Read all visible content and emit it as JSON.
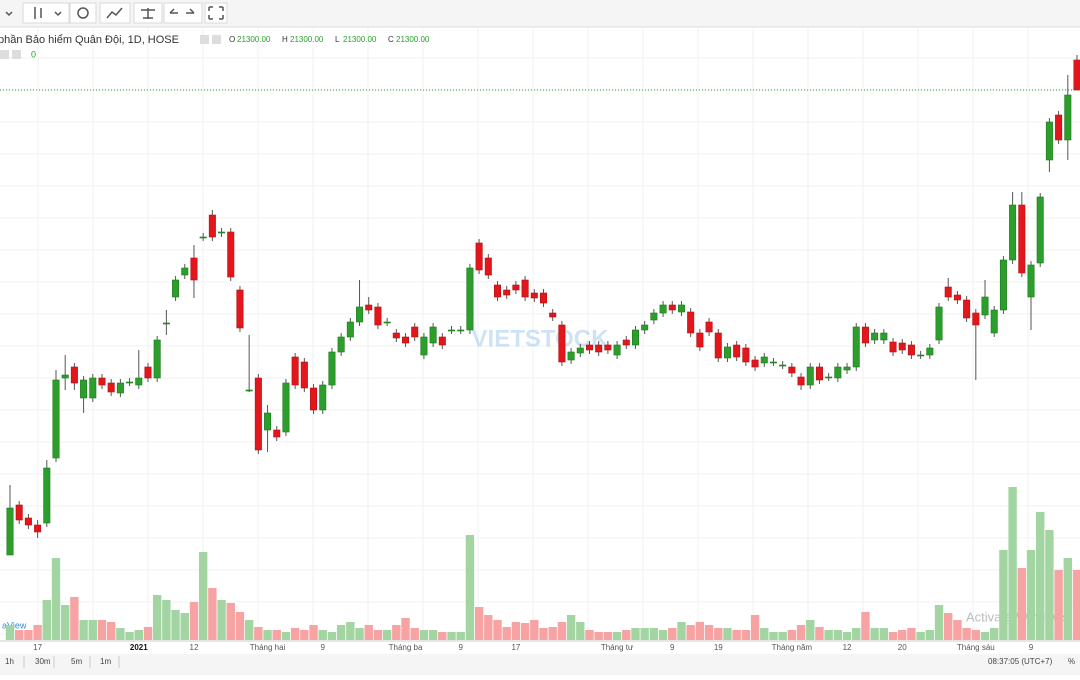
{
  "chart_data": {
    "type": "candlestick",
    "title": "phần Bảo hiểm Quân Đội, 1D, HOSE",
    "ohlc_legend": [
      {
        "key": "O",
        "value": 21300,
        "label": "21300.00"
      },
      {
        "key": "H",
        "value": 21300,
        "label": "21300.00"
      },
      {
        "key": "L",
        "value": 21300,
        "label": "21300.00"
      },
      {
        "key": "C",
        "value": 21300,
        "label": "21300.00"
      }
    ],
    "volume_legend": 0,
    "last_price_line": 21300,
    "up_color": "#2b9e2b",
    "down_color": "#e3171b",
    "volume_up_color": "#a3d5a3",
    "volume_down_color": "#f7a3a3",
    "ylim": [
      11500,
      22540
    ],
    "vlim": [
      0,
      3060000
    ],
    "categories": [
      null,
      null,
      null,
      "17",
      null,
      null,
      null,
      null,
      null,
      null,
      null,
      null,
      null,
      null,
      "2021",
      null,
      null,
      null,
      null,
      null,
      "12",
      null,
      null,
      null,
      null,
      null,
      null,
      null,
      "Tháng hai",
      null,
      null,
      null,
      null,
      null,
      "9",
      null,
      null,
      null,
      null,
      null,
      null,
      null,
      null,
      "Tháng ba",
      null,
      null,
      null,
      null,
      null,
      "9",
      null,
      null,
      null,
      null,
      null,
      "17",
      null,
      null,
      null,
      null,
      null,
      null,
      null,
      null,
      null,
      null,
      "Tháng tư",
      null,
      null,
      null,
      null,
      null,
      "9",
      null,
      null,
      null,
      null,
      "19",
      null,
      null,
      null,
      null,
      null,
      null,
      null,
      "Tháng năm",
      null,
      null,
      null,
      null,
      null,
      "12",
      null,
      null,
      null,
      null,
      null,
      "20",
      null,
      null,
      null,
      null,
      null,
      null,
      null,
      "Tháng sáu",
      null,
      null,
      null,
      null,
      null,
      "9",
      null,
      null,
      null,
      null,
      null
    ],
    "candles": [
      [
        12000,
        13400,
        12000,
        12940
      ],
      [
        13000,
        13080,
        12620,
        12700
      ],
      [
        12740,
        12820,
        12520,
        12600
      ],
      [
        12600,
        12700,
        12340,
        12460
      ],
      [
        12640,
        13900,
        12560,
        13740
      ],
      [
        13940,
        15700,
        13860,
        15500
      ],
      [
        15540,
        16000,
        15300,
        15600
      ],
      [
        15760,
        15840,
        15300,
        15440
      ],
      [
        15140,
        15580,
        14840,
        15500
      ],
      [
        15140,
        15620,
        15060,
        15540
      ],
      [
        15540,
        15620,
        15320,
        15400
      ],
      [
        15440,
        15520,
        15180,
        15260
      ],
      [
        15240,
        15520,
        15160,
        15440
      ],
      [
        15460,
        15540,
        15380,
        15460
      ],
      [
        15400,
        16100,
        15320,
        15540
      ],
      [
        15760,
        15840,
        15460,
        15540
      ],
      [
        15540,
        16380,
        15460,
        16300
      ],
      [
        16640,
        16900,
        16400,
        16640
      ],
      [
        17160,
        17580,
        17080,
        17500
      ],
      [
        17600,
        17820,
        17520,
        17740
      ],
      [
        17940,
        18200,
        17140,
        17500
      ],
      [
        18360,
        18440,
        18280,
        18360
      ],
      [
        18800,
        18900,
        18280,
        18360
      ],
      [
        18460,
        18540,
        18360,
        18460
      ],
      [
        18460,
        18540,
        17480,
        17560
      ],
      [
        17300,
        17380,
        16460,
        16540
      ],
      [
        15300,
        16400,
        15260,
        15300
      ],
      [
        15540,
        15620,
        14020,
        14100
      ],
      [
        14500,
        15000,
        14060,
        14840
      ],
      [
        14500,
        14580,
        14280,
        14360
      ],
      [
        14460,
        15520,
        14380,
        15440
      ],
      [
        15960,
        16040,
        15320,
        15400
      ],
      [
        15860,
        15940,
        15260,
        15340
      ],
      [
        15340,
        15420,
        14820,
        14900
      ],
      [
        14900,
        15480,
        14820,
        15400
      ],
      [
        15400,
        16140,
        15320,
        16060
      ],
      [
        16060,
        16440,
        15980,
        16360
      ],
      [
        16360,
        16740,
        16280,
        16660
      ],
      [
        16660,
        17500,
        16580,
        16960
      ],
      [
        17000,
        17160,
        16820,
        16900
      ],
      [
        16960,
        17040,
        16520,
        16600
      ],
      [
        16660,
        16740,
        16580,
        16660
      ],
      [
        16440,
        16520,
        16260,
        16340
      ],
      [
        16360,
        16440,
        16160,
        16240
      ],
      [
        16560,
        16640,
        16280,
        16360
      ],
      [
        16000,
        16440,
        15920,
        16360
      ],
      [
        16240,
        16640,
        16160,
        16560
      ],
      [
        16360,
        16440,
        16120,
        16200
      ],
      [
        16500,
        16580,
        16420,
        16500
      ],
      [
        16500,
        16580,
        16420,
        16500
      ],
      [
        16500,
        17820,
        16420,
        17740
      ],
      [
        18240,
        18320,
        17620,
        17700
      ],
      [
        17940,
        18020,
        17520,
        17600
      ],
      [
        17400,
        17480,
        17080,
        17160
      ],
      [
        17300,
        17380,
        17120,
        17200
      ],
      [
        17400,
        17480,
        17220,
        17300
      ],
      [
        17500,
        17580,
        17080,
        17160
      ],
      [
        17240,
        17320,
        17060,
        17140
      ],
      [
        17240,
        17320,
        16960,
        17040
      ],
      [
        16840,
        16920,
        16680,
        16760
      ],
      [
        16600,
        16680,
        15780,
        15860
      ],
      [
        15900,
        16140,
        15820,
        16060
      ],
      [
        16040,
        16220,
        15960,
        16140
      ],
      [
        16200,
        16280,
        16020,
        16100
      ],
      [
        16200,
        16280,
        15980,
        16060
      ],
      [
        16200,
        16280,
        16020,
        16100
      ],
      [
        16000,
        16280,
        15920,
        16200
      ],
      [
        16300,
        16380,
        16120,
        16200
      ],
      [
        16200,
        16580,
        16120,
        16500
      ],
      [
        16500,
        16680,
        16420,
        16600
      ],
      [
        16700,
        16920,
        16620,
        16840
      ],
      [
        16840,
        17080,
        16760,
        17000
      ],
      [
        17000,
        17080,
        16820,
        16900
      ],
      [
        16860,
        17080,
        16780,
        17000
      ],
      [
        16860,
        16940,
        16360,
        16440
      ],
      [
        16440,
        16520,
        16080,
        16160
      ],
      [
        16660,
        16740,
        16380,
        16460
      ],
      [
        16440,
        16520,
        15860,
        15940
      ],
      [
        15940,
        16240,
        15860,
        16160
      ],
      [
        16200,
        16280,
        15880,
        15960
      ],
      [
        16140,
        16220,
        15780,
        15860
      ],
      [
        15900,
        15980,
        15680,
        15760
      ],
      [
        15840,
        16040,
        15760,
        15960
      ],
      [
        15860,
        15940,
        15780,
        15860
      ],
      [
        15800,
        15880,
        15720,
        15800
      ],
      [
        15760,
        15840,
        15560,
        15640
      ],
      [
        15560,
        15640,
        15300,
        15400
      ],
      [
        15400,
        15840,
        15320,
        15760
      ],
      [
        15760,
        15840,
        15420,
        15500
      ],
      [
        15560,
        15640,
        15480,
        15560
      ],
      [
        15540,
        15840,
        15460,
        15760
      ],
      [
        15700,
        15840,
        15620,
        15760
      ],
      [
        15760,
        16640,
        15680,
        16560
      ],
      [
        16560,
        16640,
        16160,
        16240
      ],
      [
        16300,
        16520,
        16220,
        16440
      ],
      [
        16300,
        16520,
        16220,
        16440
      ],
      [
        16260,
        16340,
        15980,
        16060
      ],
      [
        16240,
        16320,
        16020,
        16100
      ],
      [
        16200,
        16280,
        15920,
        16000
      ],
      [
        16000,
        16080,
        15920,
        16000
      ],
      [
        16000,
        16220,
        15920,
        16140
      ],
      [
        16300,
        17040,
        16220,
        16960
      ],
      [
        17360,
        17540,
        17080,
        17160
      ],
      [
        17200,
        17280,
        17020,
        17100
      ],
      [
        17100,
        17180,
        16660,
        16740
      ],
      [
        16840,
        16920,
        15500,
        16600
      ],
      [
        16800,
        17500,
        16720,
        17160
      ],
      [
        16440,
        16980,
        16360,
        16900
      ],
      [
        16900,
        17980,
        16820,
        17900
      ],
      [
        17900,
        19260,
        17820,
        19000
      ],
      [
        19000,
        19260,
        17560,
        17640
      ],
      [
        17160,
        17880,
        16500,
        17800
      ],
      [
        17840,
        19240,
        17760,
        19160
      ],
      [
        19900,
        20740,
        19660,
        20660
      ],
      [
        20800,
        20880,
        20220,
        20300
      ],
      [
        20300,
        21600,
        19900,
        21200
      ],
      [
        21900,
        22000,
        21300,
        21300
      ]
    ],
    "volume": [
      75000,
      50000,
      50000,
      75000,
      200000,
      410000,
      175000,
      215000,
      100000,
      100000,
      100000,
      90000,
      60000,
      40000,
      50000,
      65000,
      225000,
      200000,
      150000,
      135000,
      190000,
      440000,
      260000,
      200000,
      185000,
      140000,
      100000,
      65000,
      50000,
      50000,
      40000,
      60000,
      50000,
      75000,
      50000,
      40000,
      75000,
      90000,
      60000,
      75000,
      50000,
      50000,
      75000,
      110000,
      60000,
      50000,
      50000,
      40000,
      40000,
      40000,
      525000,
      165000,
      125000,
      100000,
      65000,
      90000,
      85000,
      100000,
      60000,
      65000,
      90000,
      125000,
      90000,
      50000,
      40000,
      40000,
      40000,
      50000,
      60000,
      60000,
      60000,
      50000,
      60000,
      90000,
      75000,
      90000,
      75000,
      60000,
      60000,
      50000,
      50000,
      125000,
      60000,
      40000,
      40000,
      50000,
      75000,
      100000,
      65000,
      50000,
      50000,
      40000,
      60000,
      140000,
      60000,
      60000,
      40000,
      50000,
      60000,
      40000,
      50000,
      175000,
      135000,
      100000,
      60000,
      50000,
      40000,
      60000,
      450000,
      765000,
      360000,
      450000,
      640000,
      550000,
      350000,
      410000,
      350000
    ],
    "watermark": "VIETSTOCK",
    "intervals": [
      "1h",
      "30m",
      "5m",
      "1m"
    ],
    "clock": "08:37:05 (UTC+7)",
    "percent_button": "%",
    "brand_fragment": "aView",
    "os_notice": "Activate Windows"
  }
}
